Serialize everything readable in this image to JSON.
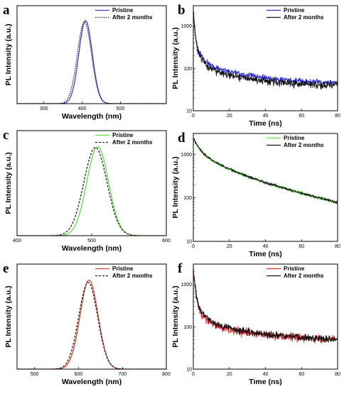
{
  "chart_data": [
    {
      "panel": "a",
      "type": "line",
      "xlabel": "Wavelength (nm)",
      "ylabel": "PL Intensity (a.u.)",
      "xlim": [
        230,
        620
      ],
      "xticks": [
        300,
        400,
        500
      ],
      "xtick_labels": [
        "300",
        "400",
        "500"
      ],
      "ylim": [
        0,
        1.18
      ],
      "y_ticks_shown": false,
      "legend_position": "top-right",
      "series": [
        {
          "name": "Pristine",
          "style": "solid",
          "color": "#4040d8",
          "peak": 409,
          "sigma": 17.5,
          "amplitude": 1.0,
          "baseline": 0.0
        },
        {
          "name": "After 2 months",
          "style": "dotted",
          "color": "#222222",
          "peak": 406,
          "sigma": 18.5,
          "amplitude": 0.985,
          "baseline": 0.0
        }
      ]
    },
    {
      "panel": "b",
      "type": "line",
      "xlabel": "Time (ns)",
      "ylabel": "PL Intensity (a.u.)",
      "xlim": [
        0,
        80
      ],
      "xticks": [
        0,
        20,
        40,
        60,
        80
      ],
      "xtick_labels": [
        "0",
        "20",
        "40",
        "60",
        "80"
      ],
      "yscale": "log",
      "ylim": [
        10,
        3000
      ],
      "yticks": [
        10,
        100,
        1000
      ],
      "ytick_labels": [
        "10",
        "100",
        "1000"
      ],
      "legend_position": "top-right",
      "series": [
        {
          "name": "Pristine",
          "color": "#2a2ad8",
          "components": [
            [
              2000,
              0.6
            ],
            [
              300,
              3.5
            ],
            [
              90,
              25
            ]
          ],
          "offset": 42,
          "noise": 0.1
        },
        {
          "name": "After 2 months",
          "color": "#111111",
          "components": [
            [
              2000,
              0.6
            ],
            [
              290,
              3.2
            ],
            [
              80,
              22
            ]
          ],
          "offset": 38,
          "noise": 0.12
        }
      ]
    },
    {
      "panel": "c",
      "type": "line",
      "xlabel": "Wavelength (nm)",
      "ylabel": "PL Intensity (a.u.)",
      "xlim": [
        400,
        600
      ],
      "xticks": [
        400,
        500,
        600
      ],
      "xtick_labels": [
        "400",
        "500",
        "600"
      ],
      "ylim": [
        0,
        1.18
      ],
      "y_ticks_shown": false,
      "legend_position": "top-right",
      "series": [
        {
          "name": "Pristine",
          "style": "solid",
          "color": "#66dd44",
          "peak": 508,
          "sigma": 14.5,
          "amplitude": 1.0,
          "baseline": 0.0
        },
        {
          "name": "After 2 months",
          "style": "dashed",
          "color": "#222222",
          "peak": 505,
          "sigma": 15.5,
          "amplitude": 0.99,
          "baseline": 0.0
        }
      ]
    },
    {
      "panel": "d",
      "type": "line",
      "xlabel": "Time (ns)",
      "ylabel": "PL Intensity (a.u.)",
      "xlim": [
        0,
        80
      ],
      "xticks": [
        0,
        20,
        40,
        60,
        80
      ],
      "xtick_labels": [
        "0",
        "20",
        "40",
        "60",
        "80"
      ],
      "yscale": "log",
      "ylim": [
        10,
        3000
      ],
      "yticks": [
        10,
        100,
        1000
      ],
      "ytick_labels": [
        "10",
        "100",
        "1000"
      ],
      "legend_position": "top-right",
      "series": [
        {
          "name": "Pristine",
          "color": "#66dd44",
          "components": [
            [
              1200,
              3.0
            ],
            [
              700,
              14
            ],
            [
              450,
              45
            ]
          ],
          "offset": 0,
          "noise": 0.06
        },
        {
          "name": "After 2 months",
          "color": "#111111",
          "components": [
            [
              1200,
              3.0
            ],
            [
              700,
              14
            ],
            [
              450,
              45
            ]
          ],
          "offset": 0,
          "noise": 0.04
        }
      ]
    },
    {
      "panel": "e",
      "type": "line",
      "xlabel": "Wavelength (nm)",
      "ylabel": "PL Intensity (a.u.)",
      "xlim": [
        460,
        800
      ],
      "xticks": [
        500,
        600,
        700,
        800
      ],
      "xtick_labels": [
        "500",
        "600",
        "700",
        "800"
      ],
      "ylim": [
        0,
        1.18
      ],
      "y_ticks_shown": false,
      "legend_position": "top-right",
      "series": [
        {
          "name": "Pristine",
          "style": "solid",
          "color": "#d84030",
          "peak": 624,
          "sigma": 20.5,
          "amplitude": 1.0,
          "baseline": 0.0
        },
        {
          "name": "After 2 months",
          "style": "dashed",
          "color": "#222222",
          "peak": 622,
          "sigma": 21.5,
          "amplitude": 0.975,
          "baseline": 0.0
        }
      ]
    },
    {
      "panel": "f",
      "type": "line",
      "xlabel": "Time (ns)",
      "ylabel": "PL Intensity (a.u.)",
      "xlim": [
        0,
        80
      ],
      "xticks": [
        0,
        20,
        40,
        60,
        80
      ],
      "xtick_labels": [
        "0",
        "20",
        "40",
        "60",
        "80"
      ],
      "yscale": "log",
      "ylim": [
        10,
        3000
      ],
      "yticks": [
        10,
        100,
        1000
      ],
      "ytick_labels": [
        "10",
        "100",
        "1000"
      ],
      "legend_position": "top-right",
      "series": [
        {
          "name": "Pristine",
          "color": "#e02a2a",
          "components": [
            [
              2000,
              0.8
            ],
            [
              260,
              4.0
            ],
            [
              80,
              30
            ]
          ],
          "offset": 45,
          "noise": 0.14
        },
        {
          "name": "After 2 months",
          "color": "#111111",
          "components": [
            [
              2000,
              0.8
            ],
            [
              280,
              4.5
            ],
            [
              85,
              30
            ]
          ],
          "offset": 45,
          "noise": 0.12
        }
      ]
    }
  ]
}
